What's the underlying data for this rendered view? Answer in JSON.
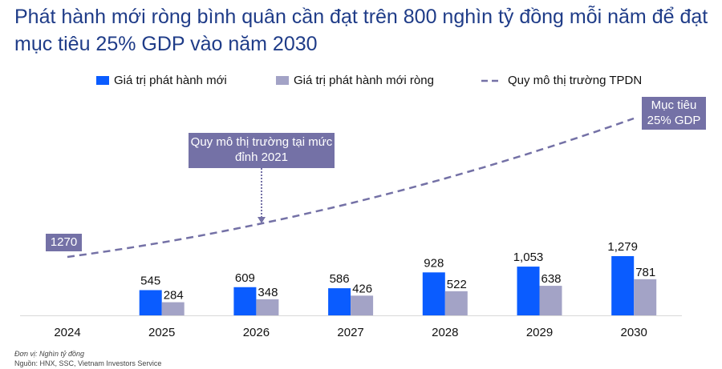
{
  "title": "Phát hành mới ròng bình quân cần đạt trên 800 nghìn tỷ đồng mỗi năm để đạt mục tiêu 25% GDP vào năm 2030",
  "chart_data": {
    "type": "bar",
    "categories": [
      "2024",
      "2025",
      "2026",
      "2027",
      "2028",
      "2029",
      "2030"
    ],
    "series": [
      {
        "name": "Giá trị phát hành mới",
        "values": [
          null,
          545,
          609,
          586,
          928,
          1053,
          1279
        ],
        "labels": [
          "",
          "545",
          "609",
          "586",
          "928",
          "1,053",
          "1,279"
        ],
        "color": "#0a5cff"
      },
      {
        "name": "Giá trị phát hành mới ròng",
        "values": [
          null,
          284,
          348,
          426,
          522,
          638,
          781
        ],
        "labels": [
          "",
          "284",
          "348",
          "426",
          "522",
          "638",
          "781"
        ],
        "color": "#a3a3c6"
      },
      {
        "name": "Quy mô thị trường TPDN",
        "type": "line",
        "style": "dashed",
        "color": "#7471a6",
        "start_label": "1270"
      }
    ],
    "annotations": [
      "Quy mô thị trường tại mức đỉnh 2021",
      "Mục tiêu 25% GDP"
    ],
    "grid": false,
    "legend": "top"
  },
  "annotations": {
    "peak": "Quy mô thị trường tại mức đỉnh 2021",
    "target_l1": "Mục tiêu",
    "target_l2": "25% GDP",
    "start": "1270"
  },
  "notes": {
    "unit": "Đơn vị: Nghìn tỷ đồng",
    "source": "Nguồn: HNX, SSC, Vietnam Investors Service"
  }
}
